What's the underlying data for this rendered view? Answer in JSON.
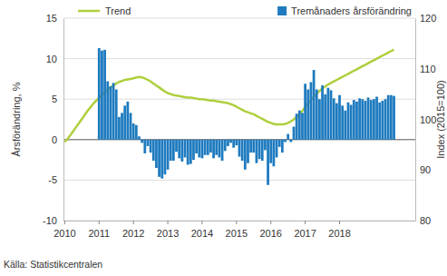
{
  "chart_data": {
    "type": "combo",
    "y_label": "Årsförändring, %",
    "y2_label": "Index (2015=100)",
    "source": "Källa: Statistikcentralen",
    "categories": [
      "2010",
      null,
      null,
      null,
      null,
      null,
      null,
      null,
      null,
      null,
      null,
      null,
      "2011",
      null,
      null,
      null,
      null,
      null,
      null,
      null,
      null,
      null,
      null,
      null,
      "2012",
      null,
      null,
      null,
      null,
      null,
      null,
      null,
      null,
      null,
      null,
      null,
      "2013",
      null,
      null,
      null,
      null,
      null,
      null,
      null,
      null,
      null,
      null,
      null,
      "2014",
      null,
      null,
      null,
      null,
      null,
      null,
      null,
      null,
      null,
      null,
      null,
      "2015",
      null,
      null,
      null,
      null,
      null,
      null,
      null,
      null,
      null,
      null,
      null,
      "2016",
      null,
      null,
      null,
      null,
      null,
      null,
      null,
      null,
      null,
      null,
      null,
      "2017",
      null,
      null,
      null,
      null,
      null,
      null,
      null,
      null,
      null,
      null,
      null,
      "2018",
      null,
      null,
      null,
      null,
      null,
      null,
      null,
      null,
      null,
      null,
      null,
      null,
      null,
      null,
      null,
      null,
      null,
      null,
      null,
      null,
      null,
      null,
      null,
      null,
      null,
      null
    ],
    "series": [
      {
        "name": "Trend",
        "type": "line",
        "axis": "y2",
        "color": "#aecf3e",
        "values": [
          95.5,
          96.2,
          96.9,
          97.7,
          98.5,
          99.3,
          100.1,
          100.9,
          101.7,
          102.4,
          103.1,
          103.7,
          104.3,
          104.8,
          105.3,
          105.8,
          106.3,
          106.7,
          107.1,
          107.4,
          107.6,
          107.8,
          107.9,
          108.0,
          108.1,
          108.3,
          108.4,
          108.3,
          108.1,
          107.8,
          107.5,
          107.1,
          106.7,
          106.3,
          105.9,
          105.5,
          105.2,
          105.0,
          104.8,
          104.7,
          104.6,
          104.5,
          104.4,
          104.3,
          104.3,
          104.2,
          104.1,
          104.0,
          104.0,
          103.9,
          103.8,
          103.7,
          103.7,
          103.6,
          103.5,
          103.4,
          103.3,
          103.2,
          103.0,
          102.8,
          102.5,
          102.2,
          101.9,
          101.6,
          101.4,
          101.2,
          101.0,
          100.7,
          100.4,
          100.1,
          99.8,
          99.5,
          99.3,
          99.1,
          99.0,
          99.0,
          99.0,
          99.1,
          99.3,
          99.6,
          100.0,
          100.5,
          101.1,
          101.7,
          102.4,
          103.1,
          103.8,
          104.5,
          105.1,
          105.6,
          106.1,
          106.5,
          106.9,
          107.2,
          107.5,
          107.8,
          108.1,
          108.4,
          108.7,
          109.0,
          109.3,
          109.6,
          109.9,
          110.2,
          110.5,
          110.8,
          111.1,
          111.4,
          111.7,
          112.0,
          112.3,
          112.6,
          112.9,
          113.2,
          113.5,
          113.8,
          null,
          null,
          null,
          null,
          null,
          null,
          null
        ]
      },
      {
        "name": "Tremånaders årsförändring",
        "type": "bar",
        "color": "#1f7bbf",
        "values": [
          null,
          null,
          null,
          null,
          null,
          null,
          null,
          null,
          null,
          null,
          null,
          null,
          11.3,
          11.0,
          11.1,
          7.2,
          6.6,
          7.0,
          6.2,
          2.8,
          3.3,
          4.2,
          4.7,
          3.3,
          2.0,
          1.8,
          0.4,
          -0.4,
          -1.7,
          -0.8,
          -1.6,
          -2.6,
          -3.5,
          -4.6,
          -4.8,
          -4.3,
          -3.7,
          -2.6,
          -2.6,
          -1.5,
          -2.3,
          -2.7,
          -2.2,
          -3.1,
          -3.0,
          -2.5,
          -1.7,
          -2.2,
          -2.3,
          -1.9,
          -1.9,
          -1.6,
          -2.3,
          -1.9,
          -2.2,
          -2.6,
          -1.4,
          -0.8,
          -0.4,
          -1.0,
          -0.7,
          -2.1,
          -2.6,
          -3.7,
          -2.9,
          -1.6,
          -1.6,
          -2.9,
          -2.4,
          -2.6,
          -1.3,
          -5.6,
          -2.9,
          -3.3,
          -2.2,
          -0.9,
          -1.6,
          -0.3,
          0.7,
          -0.3,
          1.6,
          3.2,
          3.6,
          3.3,
          6.9,
          6.2,
          7.1,
          8.6,
          6.2,
          5.0,
          6.7,
          5.6,
          6.4,
          6.1,
          5.1,
          4.5,
          5.5,
          4.2,
          3.6,
          4.6,
          4.3,
          4.9,
          4.7,
          5.1,
          5.0,
          4.8,
          5.2,
          4.9,
          5.0,
          5.3,
          4.6,
          4.8,
          5.0,
          5.5,
          5.5,
          5.4,
          null,
          null,
          null,
          null,
          null,
          null,
          null
        ]
      }
    ],
    "ylim": [
      -10,
      15
    ],
    "yticks": [
      -10,
      -5,
      0,
      5,
      10,
      15
    ],
    "y2lim": [
      80,
      120
    ],
    "y2ticks": [
      80,
      90,
      100,
      110,
      120
    ],
    "grid": true,
    "legend": "top"
  }
}
